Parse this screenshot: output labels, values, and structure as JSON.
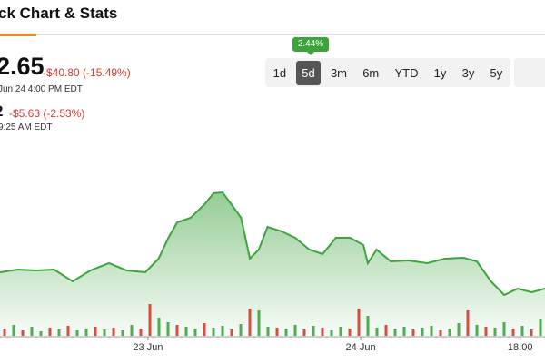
{
  "header": {
    "title": "ck Chart & Stats"
  },
  "quote": {
    "price": "2.65",
    "change": "-$40.80 (-15.49%)",
    "time": "Jun 24 4:00 PM EDT"
  },
  "quote2": {
    "price": "2",
    "change": "-$5.63 (-2.53%)",
    "time": "9:25 AM EDT"
  },
  "ranges": {
    "buttons": [
      "1d",
      "5d",
      "3m",
      "6m",
      "YTD",
      "1y",
      "3y",
      "5y"
    ],
    "selected": 1,
    "badge": "2.44%"
  },
  "chart_data": {
    "type": "area",
    "color": "#3da33d",
    "x": [
      -16.7,
      -14.7,
      -12.6,
      -10.6,
      -8.5,
      -6.5,
      -4.4,
      -2.4,
      -0.3,
      1.2,
      2.3,
      3.3,
      4.8,
      6.4,
      7.4,
      8.4,
      9.4,
      10.5,
      11.5,
      12.5,
      13.5,
      15.1,
      16.6,
      18.2,
      19.7,
      21.2,
      22.8,
      24.3,
      24.8,
      25.8,
      27.4,
      29.4,
      31.5,
      33.5,
      35.6,
      37.1,
      38.7,
      40.2,
      41.7,
      43.3,
      44.8
    ],
    "values": [
      70,
      73,
      72,
      73,
      60,
      72,
      80,
      72,
      70,
      85,
      108,
      125,
      130,
      145,
      157,
      158,
      145,
      130,
      85,
      95,
      120,
      115,
      108,
      95,
      90,
      108,
      108,
      100,
      80,
      95,
      82,
      83,
      80,
      85,
      86,
      82,
      60,
      45,
      52,
      48,
      52
    ],
    "xlim": [
      -16.7,
      44.8
    ],
    "ylim": [
      0,
      210
    ],
    "xticks": [
      {
        "value": 0,
        "label": "23 Jun"
      },
      {
        "value": 24,
        "label": "24 Jun"
      },
      {
        "value": 42,
        "label": "18:00"
      }
    ],
    "volume": {
      "values": [
        8,
        12,
        6,
        10,
        5,
        9,
        7,
        11,
        6,
        8,
        10,
        7,
        9,
        6,
        12,
        8,
        35,
        20,
        15,
        12,
        10,
        8,
        14,
        9,
        11,
        7,
        13,
        30,
        28,
        10,
        9,
        8,
        12,
        7,
        11,
        9,
        6,
        10,
        8,
        30,
        22,
        9,
        12,
        8,
        10,
        7,
        9,
        11,
        6,
        8,
        14,
        28,
        12,
        10,
        9,
        15,
        8,
        11,
        7,
        18
      ],
      "colors": [
        "#d23c2c",
        "#3da33d",
        "#d23c2c",
        "#3da33d",
        "#3da33d",
        "#d23c2c",
        "#3da33d",
        "#d23c2c",
        "#3da33d",
        "#3da33d",
        "#d23c2c",
        "#3da33d",
        "#d23c2c",
        "#3da33d",
        "#3da33d",
        "#d23c2c",
        "#d23c2c",
        "#3da33d",
        "#3da33d",
        "#d23c2c",
        "#3da33d",
        "#3da33d",
        "#d23c2c",
        "#3da33d",
        "#3da33d",
        "#d23c2c",
        "#3da33d",
        "#d23c2c",
        "#3da33d",
        "#3da33d",
        "#d23c2c",
        "#3da33d",
        "#3da33d",
        "#d23c2c",
        "#3da33d",
        "#d23c2c",
        "#3da33d",
        "#3da33d",
        "#d23c2c",
        "#d23c2c",
        "#3da33d",
        "#3da33d",
        "#d23c2c",
        "#3da33d",
        "#3da33d",
        "#d23c2c",
        "#3da33d",
        "#3da33d",
        "#d23c2c",
        "#3da33d",
        "#3da33d",
        "#d23c2c",
        "#3da33d",
        "#d23c2c",
        "#3da33d",
        "#3da33d",
        "#d23c2c",
        "#3da33d",
        "#d23c2c",
        "#3da33d"
      ],
      "ylim": [
        0,
        45
      ]
    }
  }
}
